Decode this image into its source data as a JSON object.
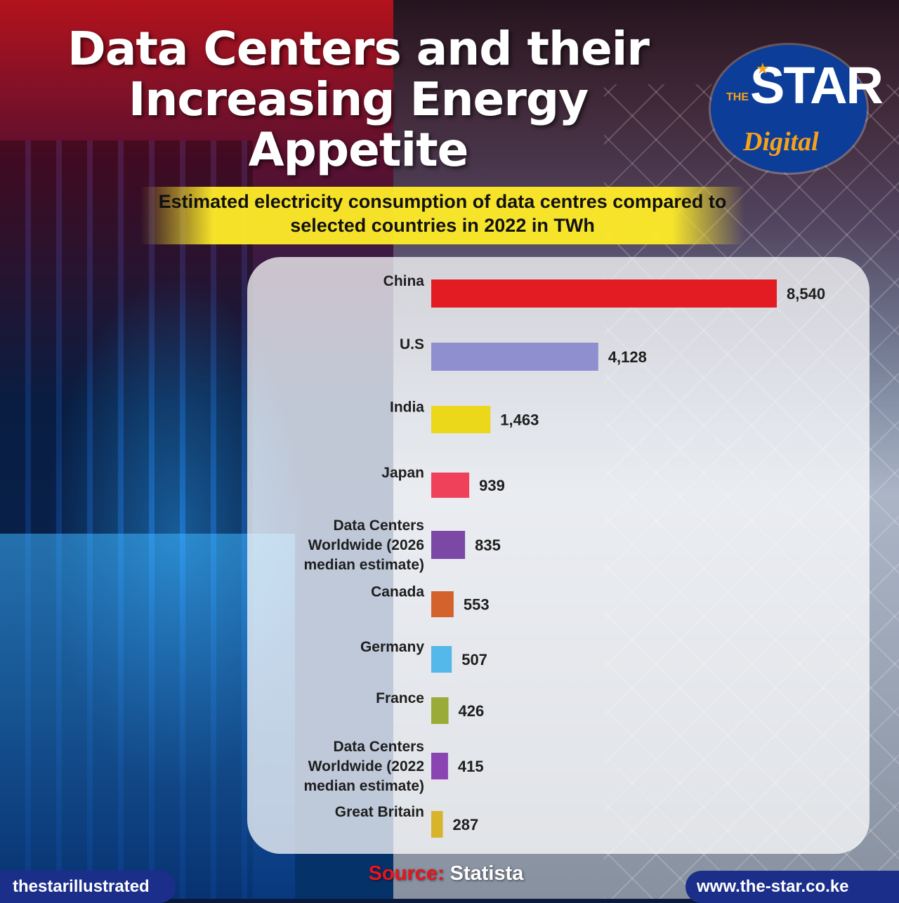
{
  "header": {
    "title": "Data Centers and their Increasing Energy Appetite"
  },
  "logo": {
    "the": "THE",
    "star": "STAR",
    "digital": "Digital"
  },
  "chart_data": {
    "type": "bar",
    "orientation": "horizontal",
    "title": "Estimated electricity consumption of data centres compared to selected countries in 2022 in TWh",
    "categories": [
      "China",
      "U.S",
      "India",
      "Japan",
      "Data Centers Worldwide (2026 median estimate)",
      "Canada",
      "Germany",
      "France",
      "Data Centers Worldwide (2022 median estimate)",
      "Great Britain"
    ],
    "values": [
      8540,
      4128,
      1463,
      939,
      835,
      553,
      507,
      426,
      415,
      287
    ],
    "value_labels": [
      "8,540",
      "4,128",
      "1,463",
      "939",
      "835",
      "553",
      "507",
      "426",
      "415",
      "287"
    ],
    "colors": [
      "#e31b23",
      "#8f8fd0",
      "#ecd81b",
      "#f0415b",
      "#7b48a6",
      "#d4622c",
      "#55b8ea",
      "#9aab38",
      "#8a45b3",
      "#d8b42c"
    ],
    "xlabel": "",
    "ylabel": "",
    "grid": false,
    "legend": "none"
  },
  "footer": {
    "source_label": "Source:",
    "source_value": "Statista",
    "handle": "thestarillustrated",
    "website": "www.the-star.co.ke"
  }
}
